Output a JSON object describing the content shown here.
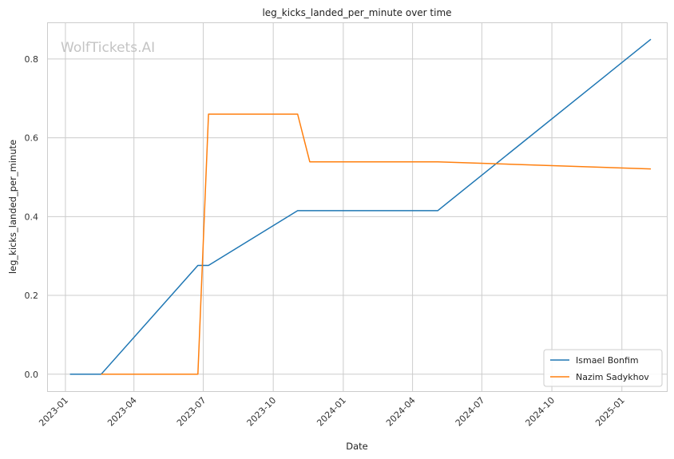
{
  "chart_data": {
    "type": "line",
    "title": "leg_kicks_landed_per_minute over time",
    "xlabel": "Date",
    "ylabel": "leg_kicks_landed_per_minute",
    "watermark": "WolfTickets.AI",
    "x_range": [
      "2022-12-09",
      "2025-03-01"
    ],
    "ylim": [
      -0.043,
      0.893
    ],
    "x_ticks": [
      "2023-01-01",
      "2023-04-01",
      "2023-07-01",
      "2023-10-01",
      "2024-01-01",
      "2024-04-01",
      "2024-07-01",
      "2024-10-01",
      "2025-01-01"
    ],
    "x_tick_labels": [
      "2023-01",
      "2023-04",
      "2023-07",
      "2023-10",
      "2024-01",
      "2024-04",
      "2024-07",
      "2024-10",
      "2025-01"
    ],
    "y_ticks": [
      0.0,
      0.2,
      0.4,
      0.6,
      0.8
    ],
    "y_tick_labels": [
      "0.0",
      "0.2",
      "0.4",
      "0.6",
      "0.8"
    ],
    "grid": true,
    "legend_position": "bottom-right",
    "series": [
      {
        "name": "Ismael Bonfim",
        "color": "#1f77b4",
        "points": [
          [
            "2023-01-07",
            0.0
          ],
          [
            "2023-02-17",
            0.0
          ],
          [
            "2023-06-24",
            0.276
          ],
          [
            "2023-07-08",
            0.276
          ],
          [
            "2023-11-02",
            0.415
          ],
          [
            "2024-05-04",
            0.415
          ],
          [
            "2025-02-08",
            0.85
          ]
        ]
      },
      {
        "name": "Nazim Sadykhov",
        "color": "#ff7f0e",
        "points": [
          [
            "2023-02-17",
            0.0
          ],
          [
            "2023-06-24",
            0.0
          ],
          [
            "2023-07-08",
            0.66
          ],
          [
            "2023-11-02",
            0.66
          ],
          [
            "2023-11-18",
            0.539
          ],
          [
            "2024-05-04",
            0.539
          ],
          [
            "2025-02-08",
            0.521
          ]
        ]
      }
    ]
  }
}
